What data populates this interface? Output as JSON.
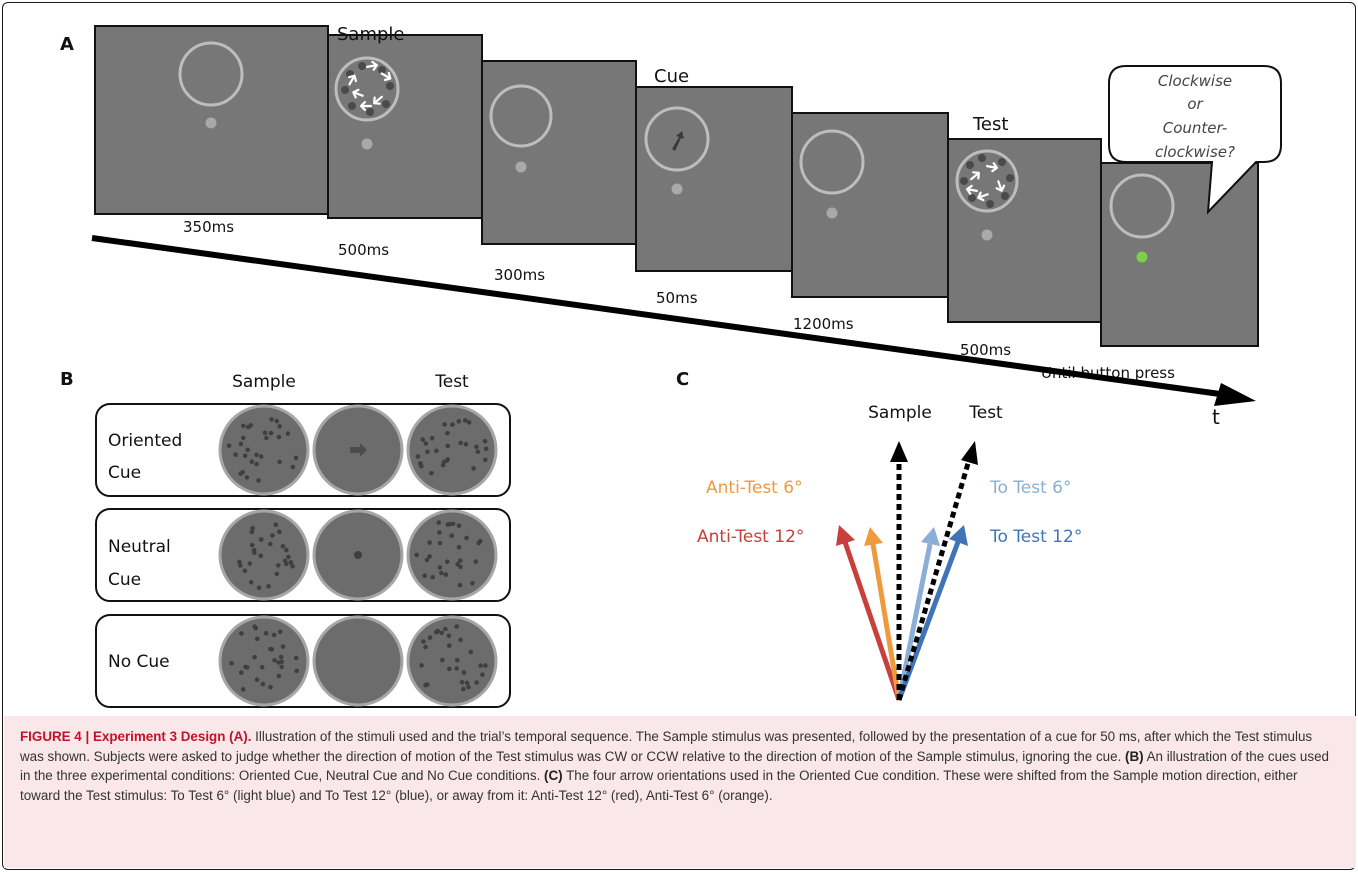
{
  "panels": {
    "a": "A",
    "b": "B",
    "c": "C"
  },
  "panel_a": {
    "labels": [
      "Sample",
      "Cue",
      "Test"
    ],
    "durations": [
      "350ms",
      "500ms",
      "300ms",
      "50ms",
      "1200ms",
      "500ms",
      "Until button press"
    ],
    "speech": [
      "Clockwise",
      "or",
      "Counter-",
      "clockwise?"
    ],
    "axis_label": "t"
  },
  "panel_b": {
    "col_labels": [
      "Sample",
      "Test"
    ],
    "conditions": [
      {
        "line1": "Oriented",
        "line2": "Cue"
      },
      {
        "line1": "Neutral",
        "line2": "Cue"
      },
      {
        "line1": "No Cue",
        "line2": ""
      }
    ]
  },
  "panel_c": {
    "sample": "Sample",
    "test": "Test",
    "to6": "To Test 6°",
    "to12": "To Test 12°",
    "anti6": "Anti-Test 6°",
    "anti12": "Anti-Test 12°",
    "colors": {
      "to6": "#8aaed6",
      "to12": "#3f74b8",
      "anti6": "#f09a3e",
      "anti12": "#c8403c"
    }
  },
  "caption": {
    "heading": "FIGURE 4 | Experiment 3 Design (A).",
    "text_a": " Illustration of the stimuli used and the trial’s temporal sequence. The Sample stimulus was presented, followed by the presentation of a cue for 50 ms, after which the Test stimulus was shown. Subjects were asked to judge whether the direction of motion of the Test stimulus was CW or CCW relative to the direction of motion of the Sample stimulus, ignoring the cue. ",
    "b_label": "(B)",
    "text_b": " An illustration of the cues used in the three experimental conditions: Oriented Cue, Neutral Cue and No Cue conditions. ",
    "c_label": "(C)",
    "text_c": " The four arrow orientations used in the Oriented Cue condition. These were shifted from the Sample motion direction, either toward the Test stimulus: To Test 6° (light blue) and To Test 12° (blue), or away from it: Anti-Test 12° (red), Anti-Test 6° (orange)."
  }
}
